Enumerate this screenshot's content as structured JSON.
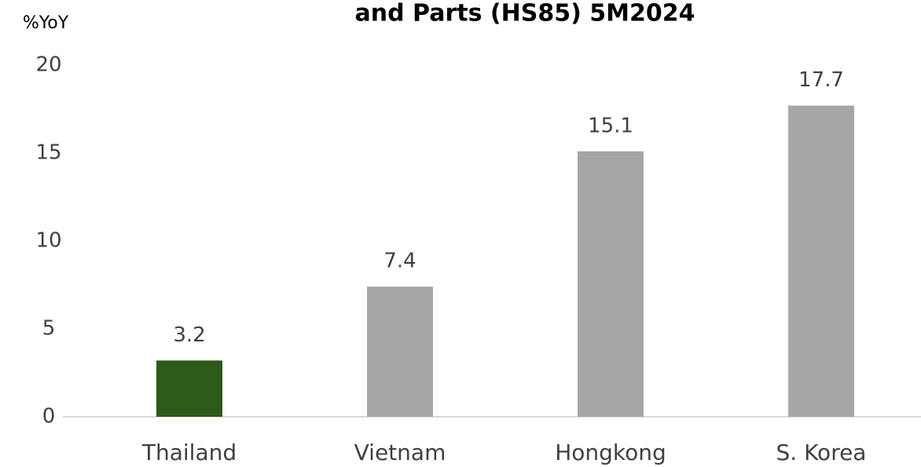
{
  "chart_data": {
    "type": "bar",
    "title": "and Parts (HS85)  5M2024",
    "y_label": "%YoY",
    "categories": [
      "Thailand",
      "Vietnam",
      "Hongkong",
      "S. Korea"
    ],
    "values": [
      3.2,
      7.4,
      15.1,
      17.7
    ],
    "colors": [
      "#2d5a1b",
      "#a6a6a6",
      "#a6a6a6",
      "#a6a6a6"
    ],
    "ylim": [
      0,
      20
    ],
    "yticks": [
      0,
      5,
      10,
      15,
      20
    ],
    "grid": false
  }
}
